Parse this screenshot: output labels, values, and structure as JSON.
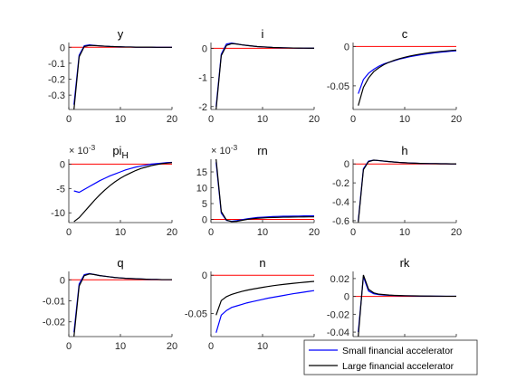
{
  "figure": {
    "legend": {
      "placement": "bottom-right",
      "entries": [
        {
          "label": "Small financial accelerator",
          "color": "#0000ff"
        },
        {
          "label": "Large financial accelerator",
          "color": "#000000"
        }
      ]
    },
    "zero_line_color": "#ff0000"
  },
  "chart_data": [
    {
      "type": "line",
      "title": "y",
      "xlim": [
        0,
        20
      ],
      "ylim": [
        -0.39,
        0.03
      ],
      "xticks": [
        0,
        10,
        20
      ],
      "yticks": [
        0,
        -0.1,
        -0.2,
        -0.3
      ],
      "ytick_labels": [
        "0",
        "-0.1",
        "-0.2",
        "-0.3"
      ],
      "zero_line": true,
      "legend": false,
      "x": [
        1,
        2,
        3,
        4,
        5,
        6,
        7,
        8,
        9,
        10,
        11,
        12,
        13,
        14,
        15,
        16,
        17,
        18,
        19,
        20
      ],
      "series": [
        {
          "name": "Small financial accelerator",
          "values": [
            -0.36,
            -0.05,
            0.01,
            0.015,
            0.012,
            0.009,
            0.007,
            0.005,
            0.004,
            0.003,
            0.002,
            0.002,
            0.001,
            0.001,
            0.001,
            0.001,
            0.0,
            0.0,
            0.0,
            0.0
          ]
        },
        {
          "name": "Large financial accelerator",
          "values": [
            -0.39,
            -0.06,
            0.005,
            0.012,
            0.011,
            0.009,
            0.007,
            0.005,
            0.004,
            0.003,
            0.002,
            0.002,
            0.001,
            0.001,
            0.001,
            0.001,
            0.0,
            0.0,
            0.0,
            0.0
          ]
        }
      ]
    },
    {
      "type": "line",
      "title": "i",
      "xlim": [
        0,
        20
      ],
      "ylim": [
        -2.1,
        0.2
      ],
      "xticks": [
        0,
        10,
        20
      ],
      "yticks": [
        0,
        -1,
        -2
      ],
      "ytick_labels": [
        "0",
        "-1",
        "-2"
      ],
      "zero_line": true,
      "legend": false,
      "x": [
        1,
        2,
        3,
        4,
        5,
        6,
        7,
        8,
        9,
        10,
        11,
        12,
        13,
        14,
        15,
        16,
        17,
        18,
        19,
        20
      ],
      "series": [
        {
          "name": "Small financial accelerator",
          "values": [
            -2.0,
            -0.2,
            0.15,
            0.18,
            0.15,
            0.12,
            0.1,
            0.08,
            0.06,
            0.05,
            0.04,
            0.03,
            0.025,
            0.02,
            0.015,
            0.012,
            0.01,
            0.008,
            0.006,
            0.005
          ]
        },
        {
          "name": "Large financial accelerator",
          "values": [
            -2.1,
            -0.25,
            0.1,
            0.16,
            0.15,
            0.12,
            0.1,
            0.08,
            0.06,
            0.05,
            0.04,
            0.03,
            0.025,
            0.02,
            0.015,
            0.012,
            0.01,
            0.008,
            0.006,
            0.005
          ]
        }
      ]
    },
    {
      "type": "line",
      "title": "c",
      "xlim": [
        0,
        20
      ],
      "ylim": [
        -0.08,
        0.005
      ],
      "xticks": [
        0,
        10,
        20
      ],
      "yticks": [
        0,
        -0.05
      ],
      "ytick_labels": [
        "0",
        "-0.05"
      ],
      "zero_line": true,
      "legend": false,
      "x": [
        1,
        2,
        3,
        4,
        5,
        6,
        7,
        8,
        9,
        10,
        11,
        12,
        13,
        14,
        15,
        16,
        17,
        18,
        19,
        20
      ],
      "series": [
        {
          "name": "Small financial accelerator",
          "values": [
            -0.06,
            -0.042,
            -0.034,
            -0.029,
            -0.025,
            -0.022,
            -0.02,
            -0.018,
            -0.016,
            -0.0145,
            -0.013,
            -0.0118,
            -0.0107,
            -0.0097,
            -0.0088,
            -0.008,
            -0.0073,
            -0.0066,
            -0.006,
            -0.0055
          ]
        },
        {
          "name": "Large financial accelerator",
          "values": [
            -0.075,
            -0.052,
            -0.04,
            -0.032,
            -0.027,
            -0.023,
            -0.02,
            -0.0175,
            -0.0155,
            -0.0137,
            -0.0122,
            -0.0109,
            -0.0097,
            -0.0087,
            -0.0078,
            -0.007,
            -0.0063,
            -0.0057,
            -0.0051,
            -0.0046
          ]
        }
      ]
    },
    {
      "type": "line",
      "title": "pi",
      "title_subscript": "H",
      "exponent_label": "× 10",
      "exponent_power": "-3",
      "xlim": [
        0,
        20
      ],
      "ylim": [
        -12,
        1
      ],
      "xticks": [
        0,
        10,
        20
      ],
      "yticks": [
        0,
        -5,
        -10
      ],
      "ytick_labels": [
        "0",
        "-5",
        "-10"
      ],
      "zero_line": true,
      "legend": false,
      "x": [
        1,
        2,
        3,
        4,
        5,
        6,
        7,
        8,
        9,
        10,
        11,
        12,
        13,
        14,
        15,
        16,
        17,
        18,
        19,
        20
      ],
      "series": [
        {
          "name": "Small financial accelerator",
          "values": [
            -5.5,
            -5.8,
            -5.2,
            -4.6,
            -4.0,
            -3.4,
            -2.9,
            -2.4,
            -2.0,
            -1.6,
            -1.2,
            -0.9,
            -0.6,
            -0.4,
            -0.2,
            0.0,
            0.1,
            0.2,
            0.3,
            0.35
          ]
        },
        {
          "name": "Large financial accelerator",
          "values": [
            -11.8,
            -11.0,
            -9.8,
            -8.6,
            -7.4,
            -6.3,
            -5.3,
            -4.4,
            -3.6,
            -2.9,
            -2.3,
            -1.8,
            -1.3,
            -0.9,
            -0.6,
            -0.3,
            -0.1,
            0.1,
            0.2,
            0.3
          ]
        }
      ]
    },
    {
      "type": "line",
      "title": "rn",
      "exponent_label": "× 10",
      "exponent_power": "-3",
      "xlim": [
        0,
        20
      ],
      "ylim": [
        -1,
        19
      ],
      "xticks": [
        0,
        10,
        20
      ],
      "yticks": [
        0,
        5,
        10,
        15
      ],
      "ytick_labels": [
        "0",
        "5",
        "10",
        "15"
      ],
      "zero_line": true,
      "legend": false,
      "x": [
        1,
        2,
        3,
        4,
        5,
        6,
        7,
        8,
        9,
        10,
        11,
        12,
        13,
        14,
        15,
        16,
        17,
        18,
        19,
        20
      ],
      "series": [
        {
          "name": "Small financial accelerator",
          "values": [
            18.0,
            2.0,
            -0.3,
            -0.6,
            -0.4,
            -0.1,
            0.2,
            0.4,
            0.6,
            0.7,
            0.8,
            0.9,
            0.95,
            1.0,
            1.0,
            1.05,
            1.05,
            1.1,
            1.1,
            1.1
          ]
        },
        {
          "name": "Large financial accelerator",
          "values": [
            19.0,
            2.5,
            -0.2,
            -0.7,
            -0.6,
            -0.3,
            0.0,
            0.2,
            0.35,
            0.45,
            0.55,
            0.6,
            0.65,
            0.7,
            0.72,
            0.75,
            0.77,
            0.78,
            0.8,
            0.8
          ]
        }
      ]
    },
    {
      "type": "line",
      "title": "h",
      "xlim": [
        0,
        20
      ],
      "ylim": [
        -0.62,
        0.05
      ],
      "xticks": [
        0,
        10,
        20
      ],
      "yticks": [
        0,
        -0.2,
        -0.4,
        -0.6
      ],
      "ytick_labels": [
        "0",
        "-0.2",
        "-0.4",
        "-0.6"
      ],
      "zero_line": true,
      "legend": false,
      "x": [
        1,
        2,
        3,
        4,
        5,
        6,
        7,
        8,
        9,
        10,
        11,
        12,
        13,
        14,
        15,
        16,
        17,
        18,
        19,
        20
      ],
      "series": [
        {
          "name": "Small financial accelerator",
          "values": [
            -0.6,
            -0.05,
            0.03,
            0.04,
            0.035,
            0.03,
            0.025,
            0.02,
            0.016,
            0.013,
            0.01,
            0.008,
            0.006,
            0.005,
            0.004,
            0.003,
            0.002,
            0.002,
            0.001,
            0.001
          ]
        },
        {
          "name": "Large financial accelerator",
          "values": [
            -0.62,
            -0.06,
            0.025,
            0.04,
            0.036,
            0.03,
            0.025,
            0.02,
            0.016,
            0.013,
            0.01,
            0.008,
            0.006,
            0.005,
            0.004,
            0.003,
            0.002,
            0.002,
            0.001,
            0.001
          ]
        }
      ]
    },
    {
      "type": "line",
      "title": "q",
      "xlim": [
        0,
        20
      ],
      "ylim": [
        -0.027,
        0.004
      ],
      "xticks": [
        0,
        10,
        20
      ],
      "yticks": [
        0,
        -0.01,
        -0.02
      ],
      "ytick_labels": [
        "0",
        "-0.01",
        "-0.02"
      ],
      "zero_line": true,
      "legend": false,
      "x": [
        1,
        2,
        3,
        4,
        5,
        6,
        7,
        8,
        9,
        10,
        11,
        12,
        13,
        14,
        15,
        16,
        17,
        18,
        19,
        20
      ],
      "series": [
        {
          "name": "Small financial accelerator",
          "values": [
            -0.025,
            -0.002,
            0.0025,
            0.003,
            0.0025,
            0.002,
            0.0017,
            0.0014,
            0.0011,
            0.0009,
            0.0007,
            0.0006,
            0.0005,
            0.0004,
            0.0003,
            0.0002,
            0.0002,
            0.0001,
            0.0001,
            0.0001
          ]
        },
        {
          "name": "Large financial accelerator",
          "values": [
            -0.027,
            -0.003,
            0.002,
            0.0028,
            0.0025,
            0.002,
            0.0017,
            0.0014,
            0.0011,
            0.0009,
            0.0007,
            0.0006,
            0.0005,
            0.0004,
            0.0003,
            0.0002,
            0.0002,
            0.0001,
            0.0001,
            0.0001
          ]
        }
      ]
    },
    {
      "type": "line",
      "title": "n",
      "xlim": [
        0,
        20
      ],
      "ylim": [
        -0.08,
        0.005
      ],
      "xticks": [
        0,
        10,
        20
      ],
      "yticks": [
        0,
        -0.05
      ],
      "ytick_labels": [
        "0",
        "-0.05"
      ],
      "zero_line": true,
      "legend": false,
      "x": [
        1,
        2,
        3,
        4,
        5,
        6,
        7,
        8,
        9,
        10,
        11,
        12,
        13,
        14,
        15,
        16,
        17,
        18,
        19,
        20
      ],
      "series": [
        {
          "name": "Small financial accelerator",
          "values": [
            -0.075,
            -0.052,
            -0.046,
            -0.042,
            -0.04,
            -0.038,
            -0.036,
            -0.0345,
            -0.033,
            -0.0315,
            -0.03,
            -0.0288,
            -0.0276,
            -0.0264,
            -0.0252,
            -0.024,
            -0.023,
            -0.022,
            -0.021,
            -0.02
          ]
        },
        {
          "name": "Large financial accelerator",
          "values": [
            -0.052,
            -0.033,
            -0.028,
            -0.025,
            -0.023,
            -0.021,
            -0.0195,
            -0.0182,
            -0.017,
            -0.0158,
            -0.0147,
            -0.0137,
            -0.0128,
            -0.012,
            -0.0112,
            -0.0105,
            -0.0098,
            -0.0092,
            -0.0086,
            -0.008
          ]
        }
      ]
    },
    {
      "type": "line",
      "title": "rk",
      "xlim": [
        0,
        20
      ],
      "ylim": [
        -0.045,
        0.028
      ],
      "xticks": [
        0,
        10,
        20
      ],
      "yticks": [
        0.02,
        0,
        -0.02,
        -0.04
      ],
      "ytick_labels": [
        "0.02",
        "0",
        "-0.02",
        "-0.04"
      ],
      "zero_line": true,
      "legend": true,
      "x": [
        1,
        2,
        3,
        4,
        5,
        6,
        7,
        8,
        9,
        10,
        11,
        12,
        13,
        14,
        15,
        16,
        17,
        18,
        19,
        20
      ],
      "series": [
        {
          "name": "Small financial accelerator",
          "values": [
            -0.04,
            0.022,
            0.006,
            0.003,
            0.002,
            0.0015,
            0.0012,
            0.001,
            0.0008,
            0.0007,
            0.0006,
            0.0005,
            0.0004,
            0.0004,
            0.0003,
            0.0003,
            0.0002,
            0.0002,
            0.0002,
            0.0002
          ]
        },
        {
          "name": "Large financial accelerator",
          "values": [
            -0.045,
            0.024,
            0.008,
            0.004,
            0.0025,
            0.002,
            0.0015,
            0.0012,
            0.001,
            0.0008,
            0.0007,
            0.0006,
            0.0005,
            0.0004,
            0.0004,
            0.0003,
            0.0003,
            0.0002,
            0.0002,
            0.0002
          ]
        }
      ]
    }
  ]
}
